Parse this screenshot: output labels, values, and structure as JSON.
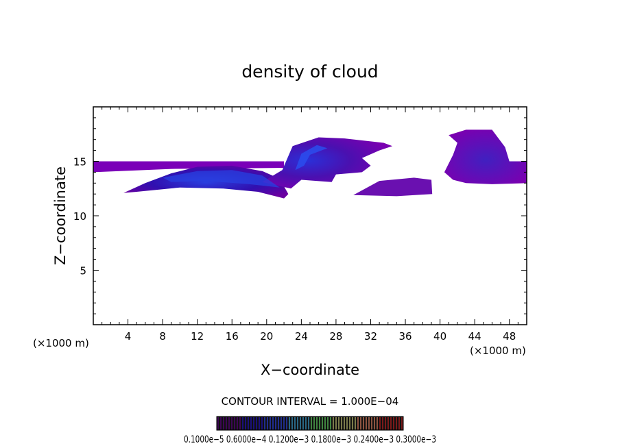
{
  "chart_data": {
    "type": "heatmap",
    "title": "density of cloud",
    "xlabel": "X−coordinate",
    "ylabel": "Z−coordinate",
    "x_unit_left": "(×1000 m)",
    "x_unit_right": "(×1000 m)",
    "xlim": [
      0,
      50
    ],
    "ylim": [
      0,
      20
    ],
    "x_ticks": [
      4,
      8,
      12,
      16,
      20,
      24,
      28,
      32,
      36,
      40,
      44,
      48
    ],
    "y_ticks": [
      5,
      10,
      15
    ],
    "grid": false,
    "contour_interval_label": "CONTOUR INTERVAL = 1.000E−04",
    "colorbar_labels": "0.1000e−5 0.6000e−4 0.1200e−3 0.1800e−3 0.2400e−3 0.3000e−3",
    "colorbar_label_values": [
      "0.1000e−5",
      "0.6000e−4",
      "0.1200e−3",
      "0.1800e−3",
      "0.2400e−3",
      "0.3000e−3"
    ],
    "colorbar_colors": [
      "#5a0080",
      "#2010c0",
      "#2a40e0",
      "#3aa0d0",
      "#60d060",
      "#c0c070",
      "#e08060",
      "#c02020"
    ],
    "cloud_regions": [
      {
        "name": "thin layer",
        "x": [
          0,
          22
        ],
        "z": [
          14.2,
          15.0
        ],
        "level": 0.3
      },
      {
        "name": "main arc",
        "x": [
          3.5,
          22.5
        ],
        "z": [
          11.8,
          14.6
        ],
        "level": 0.8
      },
      {
        "name": "anvil",
        "x": [
          19,
          35
        ],
        "z": [
          12.5,
          17.2
        ],
        "level": 0.7
      },
      {
        "name": "lower patch",
        "x": [
          30,
          39
        ],
        "z": [
          11.8,
          13.4
        ],
        "level": 0.35
      },
      {
        "name": "right cell",
        "x": [
          40.5,
          50
        ],
        "z": [
          12.8,
          17.8
        ],
        "level": 0.4
      }
    ]
  }
}
